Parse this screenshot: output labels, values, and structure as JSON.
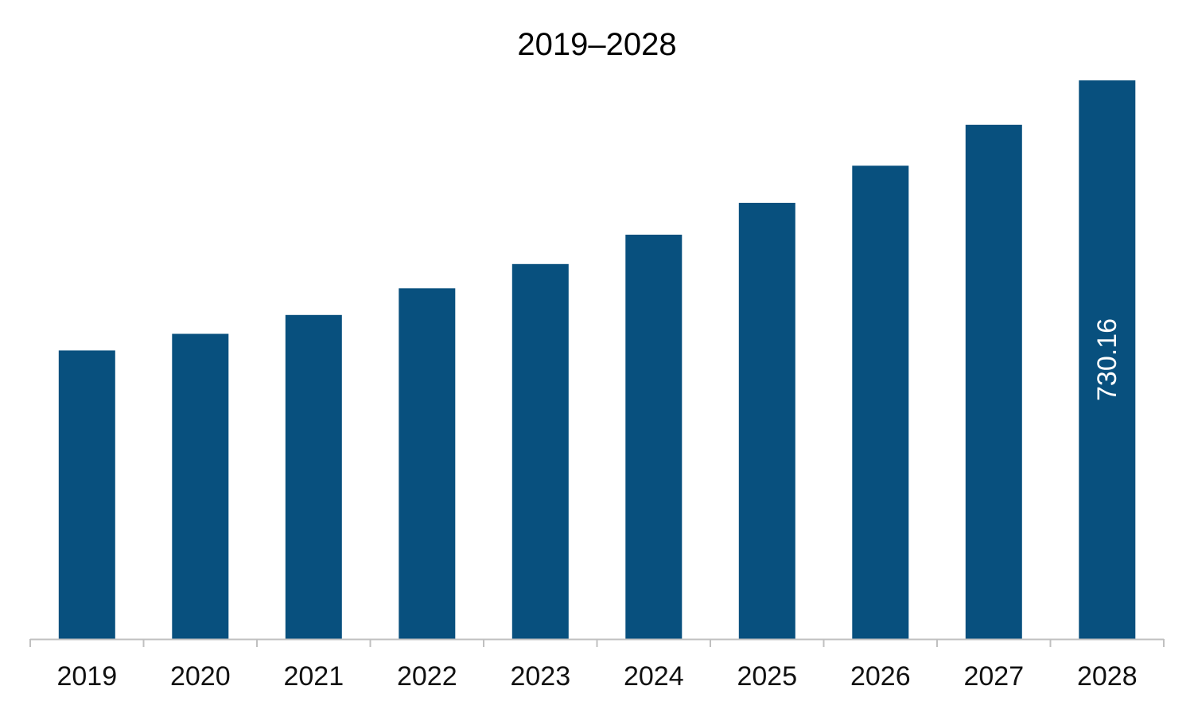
{
  "chart_data": {
    "type": "bar",
    "title": "2019–2028",
    "xlabel": "",
    "ylabel": "",
    "categories": [
      "2019",
      "2020",
      "2021",
      "2022",
      "2023",
      "2024",
      "2025",
      "2026",
      "2027",
      "2028"
    ],
    "values": [
      377.1,
      398.9,
      423.5,
      458.4,
      490.1,
      528.5,
      570.1,
      618.7,
      672.1,
      730.16
    ],
    "data_labels": [
      {
        "category": "2028",
        "text": "730.16",
        "orientation": "vertical"
      }
    ],
    "ylim": [
      0,
      730.16
    ],
    "grid": false,
    "legend": "none",
    "colors": {
      "bar": "#08507E",
      "axis": "#C0C0C0",
      "data_label": "#FFFFFF",
      "text": "#111111"
    }
  }
}
